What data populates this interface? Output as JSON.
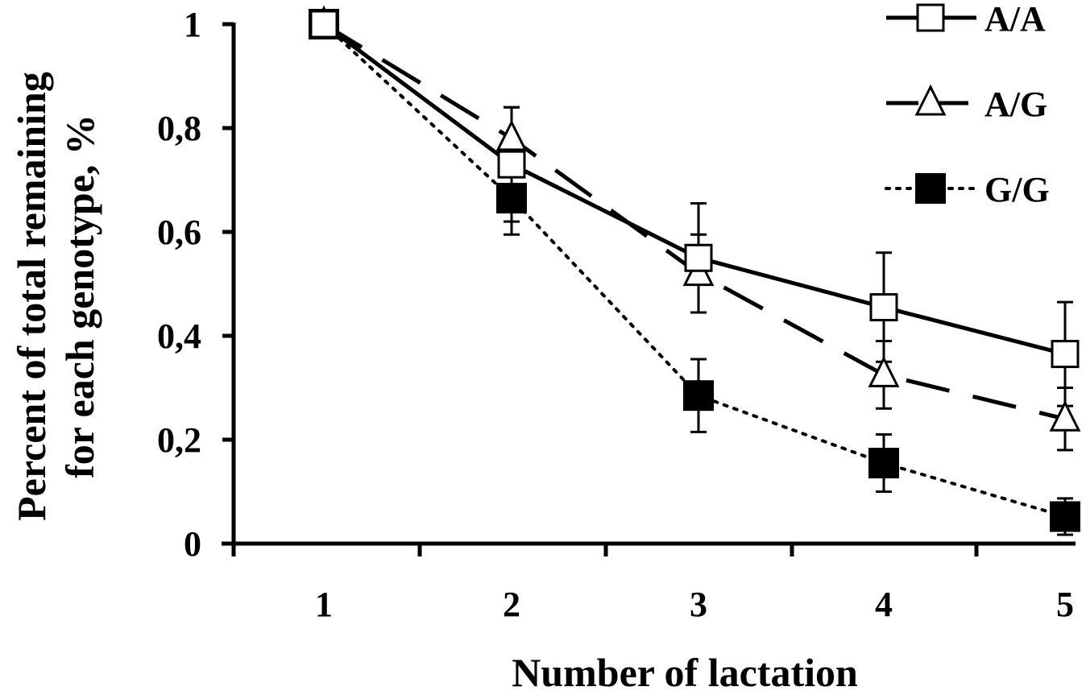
{
  "chart_data": {
    "type": "line",
    "title": "",
    "xlabel": "Number of lactation",
    "ylabel_lines": [
      "Percent of total remaining",
      "for each genotype, %"
    ],
    "x": [
      1,
      2,
      3,
      4,
      5
    ],
    "x_tick_labels": [
      "1",
      "2",
      "3",
      "4",
      "5"
    ],
    "y_tick_values": [
      0,
      0.2,
      0.4,
      0.6,
      0.8,
      1
    ],
    "y_tick_labels": [
      "0",
      "0,2",
      "0,4",
      "0,6",
      "0,8",
      "1"
    ],
    "ylim": [
      0,
      1
    ],
    "grid": false,
    "legend_position": "top-right",
    "series": [
      {
        "name": "A/A",
        "values": [
          1.0,
          0.73,
          0.55,
          0.455,
          0.365
        ],
        "error": [
          0,
          0.11,
          0.105,
          0.105,
          0.1
        ],
        "line_style": "solid",
        "marker": "open-square",
        "color": "#000000"
      },
      {
        "name": "A/G",
        "values": [
          1.0,
          0.78,
          0.52,
          0.325,
          0.24
        ],
        "error": [
          0,
          0.06,
          0.075,
          0.065,
          0.06
        ],
        "line_style": "dashed",
        "marker": "open-triangle",
        "color": "#000000"
      },
      {
        "name": "G/G",
        "values": [
          1.0,
          0.665,
          0.285,
          0.155,
          0.052
        ],
        "error": [
          0,
          0.07,
          0.07,
          0.055,
          0.035
        ],
        "line_style": "dotted",
        "marker": "filled-square",
        "color": "#000000"
      }
    ]
  }
}
